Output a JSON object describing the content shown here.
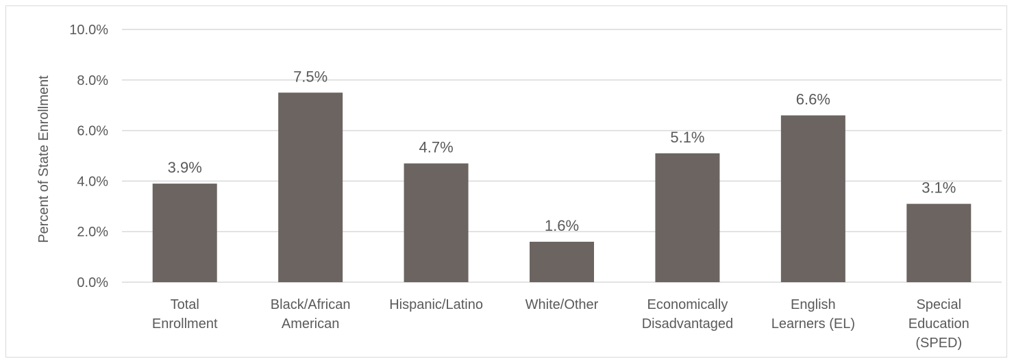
{
  "chart_data": {
    "type": "bar",
    "categories": [
      [
        "Total",
        "Enrollment"
      ],
      [
        "Black/African",
        "American"
      ],
      [
        "Hispanic/Latino"
      ],
      [
        "White/Other"
      ],
      [
        "Economically",
        "Disadvantaged"
      ],
      [
        "English",
        "Learners (EL)"
      ],
      [
        "Special",
        "Education",
        "(SPED)"
      ]
    ],
    "values": [
      3.9,
      7.5,
      4.7,
      1.6,
      5.1,
      6.6,
      3.1
    ],
    "data_labels": [
      "3.9%",
      "7.5%",
      "4.7%",
      "1.6%",
      "5.1%",
      "6.6%",
      "3.1%"
    ],
    "ylabel": "Percent of State Enrollment",
    "ylim": [
      0,
      10
    ],
    "yticks": [
      0,
      2,
      4,
      6,
      8,
      10
    ],
    "ytick_labels": [
      "0.0%",
      "2.0%",
      "4.0%",
      "6.0%",
      "8.0%",
      "10.0%"
    ],
    "grid": true,
    "bar_color": "#6b6461",
    "grid_color": "#d9d9d9"
  }
}
